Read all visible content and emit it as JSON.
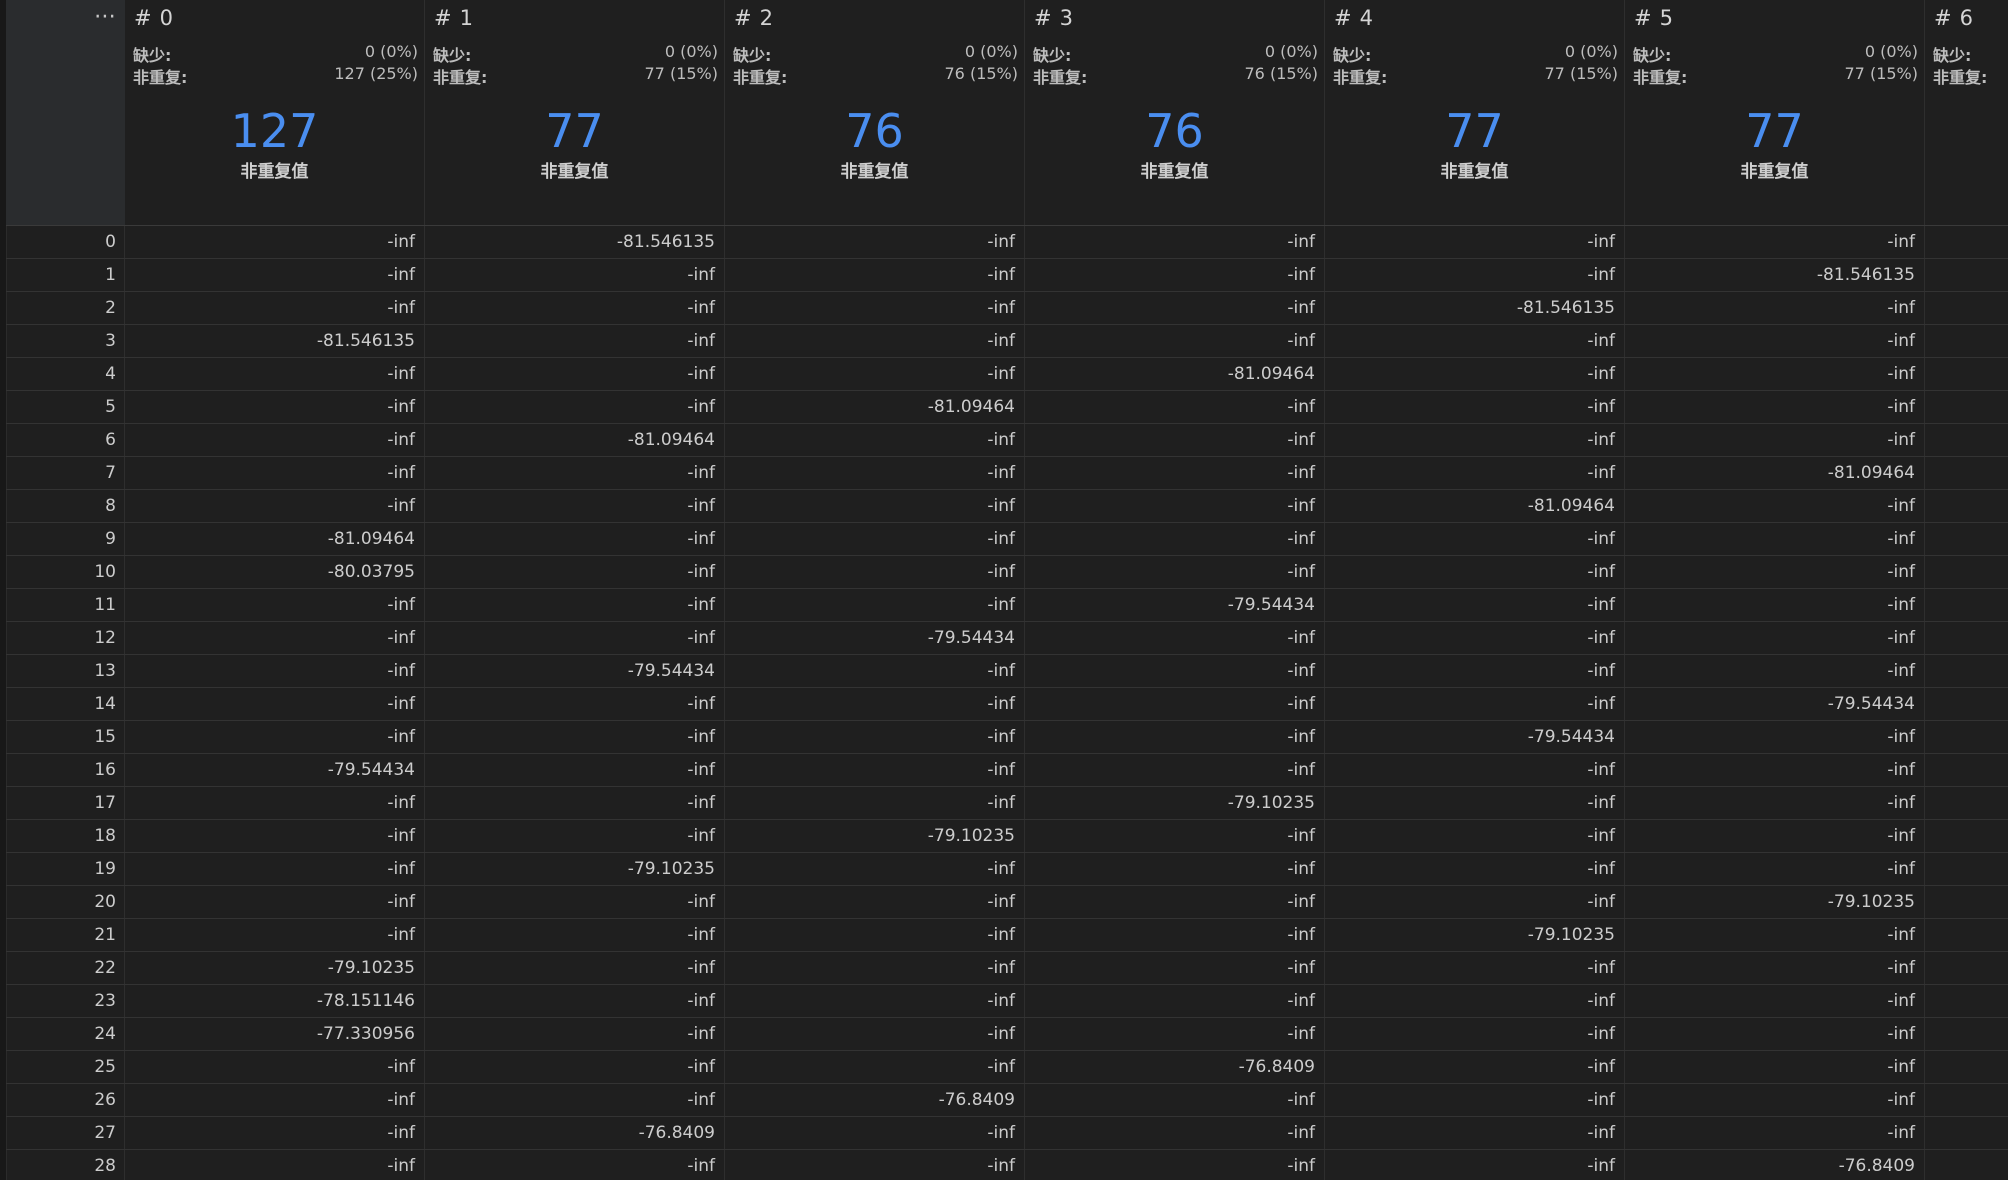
{
  "header": {
    "menu_glyph": "⋯",
    "missing_label": "缺少:",
    "distinct_label": "非重复:",
    "distinct_caption": "非重复值",
    "columns": [
      {
        "hash": "#",
        "name": "0",
        "missing": "0 (0%)",
        "distinct": "127 (25%)",
        "distinct_count": "127"
      },
      {
        "hash": "#",
        "name": "1",
        "missing": "0 (0%)",
        "distinct": "77 (15%)",
        "distinct_count": "77"
      },
      {
        "hash": "#",
        "name": "2",
        "missing": "0 (0%)",
        "distinct": "76 (15%)",
        "distinct_count": "76"
      },
      {
        "hash": "#",
        "name": "3",
        "missing": "0 (0%)",
        "distinct": "76 (15%)",
        "distinct_count": "76"
      },
      {
        "hash": "#",
        "name": "4",
        "missing": "0 (0%)",
        "distinct": "77 (15%)",
        "distinct_count": "77"
      },
      {
        "hash": "#",
        "name": "5",
        "missing": "0 (0%)",
        "distinct": "77 (15%)",
        "distinct_count": "77"
      },
      {
        "hash": "#",
        "name": "6",
        "missing": "",
        "distinct": "",
        "distinct_count": ""
      }
    ]
  },
  "rows": [
    {
      "index": "0",
      "values": [
        "-inf",
        "-81.546135",
        "-inf",
        "-inf",
        "-inf",
        "-inf",
        ""
      ]
    },
    {
      "index": "1",
      "values": [
        "-inf",
        "-inf",
        "-inf",
        "-inf",
        "-inf",
        "-81.546135",
        ""
      ]
    },
    {
      "index": "2",
      "values": [
        "-inf",
        "-inf",
        "-inf",
        "-inf",
        "-81.546135",
        "-inf",
        ""
      ]
    },
    {
      "index": "3",
      "values": [
        "-81.546135",
        "-inf",
        "-inf",
        "-inf",
        "-inf",
        "-inf",
        ""
      ]
    },
    {
      "index": "4",
      "values": [
        "-inf",
        "-inf",
        "-inf",
        "-81.09464",
        "-inf",
        "-inf",
        ""
      ]
    },
    {
      "index": "5",
      "values": [
        "-inf",
        "-inf",
        "-81.09464",
        "-inf",
        "-inf",
        "-inf",
        ""
      ]
    },
    {
      "index": "6",
      "values": [
        "-inf",
        "-81.09464",
        "-inf",
        "-inf",
        "-inf",
        "-inf",
        ""
      ]
    },
    {
      "index": "7",
      "values": [
        "-inf",
        "-inf",
        "-inf",
        "-inf",
        "-inf",
        "-81.09464",
        ""
      ]
    },
    {
      "index": "8",
      "values": [
        "-inf",
        "-inf",
        "-inf",
        "-inf",
        "-81.09464",
        "-inf",
        ""
      ]
    },
    {
      "index": "9",
      "values": [
        "-81.09464",
        "-inf",
        "-inf",
        "-inf",
        "-inf",
        "-inf",
        ""
      ]
    },
    {
      "index": "10",
      "values": [
        "-80.03795",
        "-inf",
        "-inf",
        "-inf",
        "-inf",
        "-inf",
        ""
      ]
    },
    {
      "index": "11",
      "values": [
        "-inf",
        "-inf",
        "-inf",
        "-79.54434",
        "-inf",
        "-inf",
        ""
      ]
    },
    {
      "index": "12",
      "values": [
        "-inf",
        "-inf",
        "-79.54434",
        "-inf",
        "-inf",
        "-inf",
        ""
      ]
    },
    {
      "index": "13",
      "values": [
        "-inf",
        "-79.54434",
        "-inf",
        "-inf",
        "-inf",
        "-inf",
        ""
      ]
    },
    {
      "index": "14",
      "values": [
        "-inf",
        "-inf",
        "-inf",
        "-inf",
        "-inf",
        "-79.54434",
        ""
      ]
    },
    {
      "index": "15",
      "values": [
        "-inf",
        "-inf",
        "-inf",
        "-inf",
        "-79.54434",
        "-inf",
        ""
      ]
    },
    {
      "index": "16",
      "values": [
        "-79.54434",
        "-inf",
        "-inf",
        "-inf",
        "-inf",
        "-inf",
        ""
      ]
    },
    {
      "index": "17",
      "values": [
        "-inf",
        "-inf",
        "-inf",
        "-79.10235",
        "-inf",
        "-inf",
        ""
      ]
    },
    {
      "index": "18",
      "values": [
        "-inf",
        "-inf",
        "-79.10235",
        "-inf",
        "-inf",
        "-inf",
        ""
      ]
    },
    {
      "index": "19",
      "values": [
        "-inf",
        "-79.10235",
        "-inf",
        "-inf",
        "-inf",
        "-inf",
        ""
      ]
    },
    {
      "index": "20",
      "values": [
        "-inf",
        "-inf",
        "-inf",
        "-inf",
        "-inf",
        "-79.10235",
        ""
      ]
    },
    {
      "index": "21",
      "values": [
        "-inf",
        "-inf",
        "-inf",
        "-inf",
        "-79.10235",
        "-inf",
        ""
      ]
    },
    {
      "index": "22",
      "values": [
        "-79.10235",
        "-inf",
        "-inf",
        "-inf",
        "-inf",
        "-inf",
        ""
      ]
    },
    {
      "index": "23",
      "values": [
        "-78.151146",
        "-inf",
        "-inf",
        "-inf",
        "-inf",
        "-inf",
        ""
      ]
    },
    {
      "index": "24",
      "values": [
        "-77.330956",
        "-inf",
        "-inf",
        "-inf",
        "-inf",
        "-inf",
        ""
      ]
    },
    {
      "index": "25",
      "values": [
        "-inf",
        "-inf",
        "-inf",
        "-76.8409",
        "-inf",
        "-inf",
        ""
      ]
    },
    {
      "index": "26",
      "values": [
        "-inf",
        "-inf",
        "-76.8409",
        "-inf",
        "-inf",
        "-inf",
        ""
      ]
    },
    {
      "index": "27",
      "values": [
        "-inf",
        "-76.8409",
        "-inf",
        "-inf",
        "-inf",
        "-inf",
        ""
      ]
    },
    {
      "index": "28",
      "values": [
        "-inf",
        "-inf",
        "-inf",
        "-inf",
        "-inf",
        "-76.8409",
        ""
      ]
    }
  ]
}
